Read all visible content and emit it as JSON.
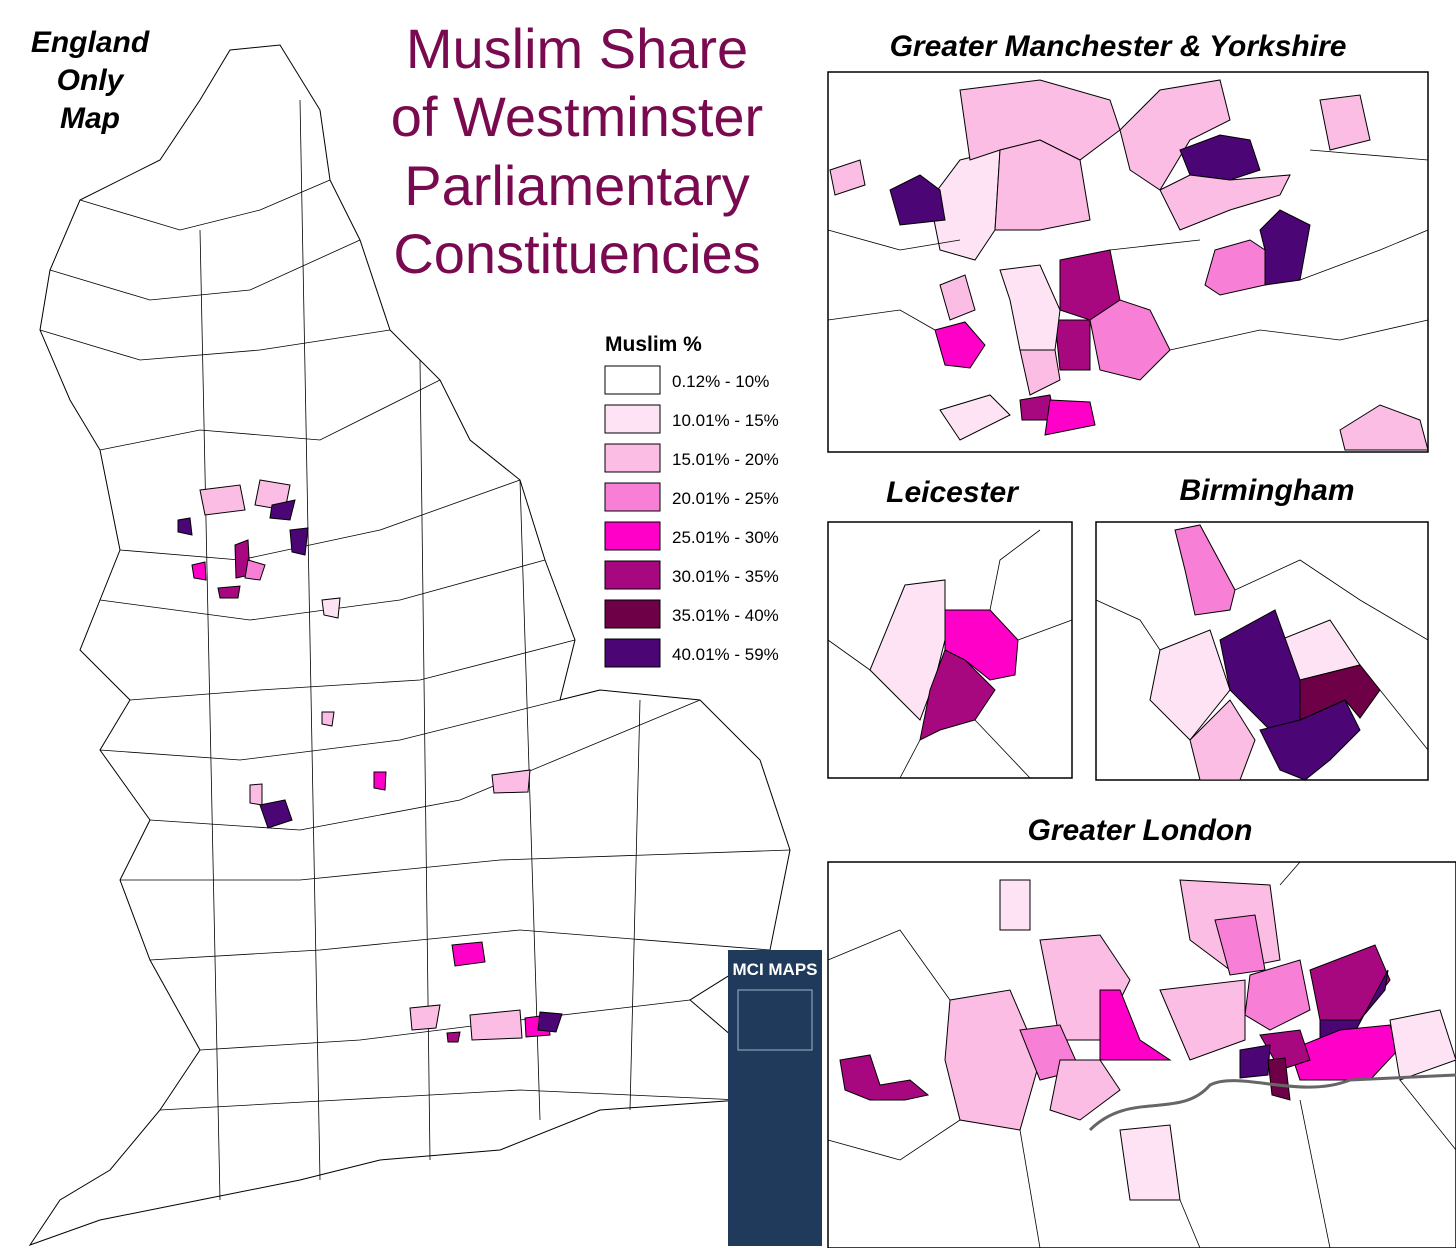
{
  "title_lines": [
    "Muslim Share",
    "of Westminster",
    "Parliamentary",
    "Constituencies"
  ],
  "corner_note": [
    "England",
    "Only",
    "Map"
  ],
  "legend": {
    "title": "Muslim %",
    "items": [
      {
        "label": "0.12% - 10%",
        "color": "#ffffff"
      },
      {
        "label": "10.01% - 15%",
        "color": "#fde3f3"
      },
      {
        "label": "15.01% - 20%",
        "color": "#fbbde3"
      },
      {
        "label": "20.01% - 25%",
        "color": "#f77fd6"
      },
      {
        "label": "25.01% - 30%",
        "color": "#ff00c8"
      },
      {
        "label": "30.01% - 35%",
        "color": "#a8087f"
      },
      {
        "label": "35.01% - 40%",
        "color": "#6e0047"
      },
      {
        "label": "40.01% - 59%",
        "color": "#4b0574"
      }
    ]
  },
  "insets": [
    {
      "title": "Greater Manchester & Yorkshire"
    },
    {
      "title": "Leicester"
    },
    {
      "title": "Birmingham"
    },
    {
      "title": "Greater London"
    }
  ],
  "logo": "MCI MAPS"
}
